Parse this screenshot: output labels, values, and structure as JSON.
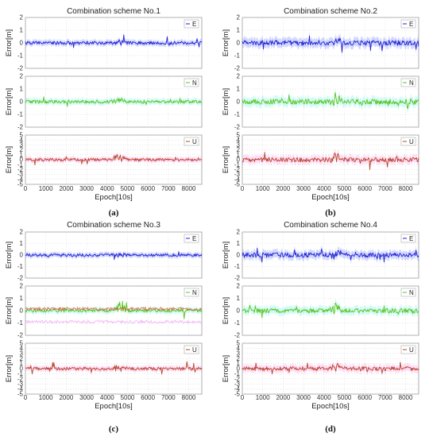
{
  "colors": {
    "E": "#2020d0",
    "N": "#58c41c",
    "U": "#b8442a",
    "E_bg": "#7b8cff",
    "N_bg": "#7ff2e4",
    "U_bg": "#ff9fe6",
    "N3_red": "#e0441e",
    "N3_pink": "#f09cf0"
  },
  "chart_data": [
    {
      "id": "a",
      "type": "line",
      "title": "Combination scheme No.1",
      "caption": "(a)",
      "xlabel": "Epoch[10s]",
      "xlim": [
        0,
        8640
      ],
      "xticks": [
        "0",
        "1000",
        "2000",
        "3000",
        "4000",
        "5000",
        "6000",
        "7000",
        "8000"
      ],
      "subplots": [
        {
          "series": "E",
          "ylabel": "Error[m]",
          "ylim": [
            -2,
            2
          ],
          "yticks": [
            "2",
            "1",
            "0",
            "-1",
            "-2"
          ],
          "mean": 0.0,
          "noise": 0.12,
          "spike": 0.55
        },
        {
          "series": "N",
          "ylabel": "Error[m]",
          "ylim": [
            -2,
            2
          ],
          "yticks": [
            "2",
            "1",
            "0",
            "-1",
            "-2"
          ],
          "mean": 0.0,
          "noise": 0.13,
          "spike": 0.5
        },
        {
          "series": "U",
          "ylabel": "Error[m]",
          "ylim": [
            -5,
            5
          ],
          "yticks": [
            "5",
            "4",
            "3",
            "2",
            "1",
            "0",
            "-1",
            "-2",
            "-3",
            "-4",
            "-5"
          ],
          "mean": 0.0,
          "noise": 0.3,
          "spike": 1.5
        }
      ]
    },
    {
      "id": "b",
      "type": "line",
      "title": "Combination scheme No.2",
      "caption": "(b)",
      "xlabel": "Epoch[10s]",
      "xlim": [
        0,
        8640
      ],
      "xticks": [
        "0",
        "1000",
        "2000",
        "3000",
        "4000",
        "5000",
        "6000",
        "7000",
        "8000"
      ],
      "subplots": [
        {
          "series": "E",
          "ylabel": "Error[m]",
          "ylim": [
            -2,
            2
          ],
          "yticks": [
            "2",
            "1",
            "0",
            "-1",
            "-2"
          ],
          "mean": 0.0,
          "noise": 0.2,
          "spike": 0.9
        },
        {
          "series": "N",
          "ylabel": "Error[m]",
          "ylim": [
            -2,
            2
          ],
          "yticks": [
            "2",
            "1",
            "0",
            "-1",
            "-2"
          ],
          "mean": 0.0,
          "noise": 0.2,
          "spike": 0.8
        },
        {
          "series": "U",
          "ylabel": "Error[m]",
          "ylim": [
            -5,
            5
          ],
          "yticks": [
            "5",
            "4",
            "3",
            "2",
            "1",
            "0",
            "-1",
            "-2",
            "-3",
            "-4",
            "-5"
          ],
          "mean": 0.0,
          "noise": 0.45,
          "spike": 2.0
        }
      ]
    },
    {
      "id": "c",
      "type": "line",
      "title": "Combination scheme No.3",
      "caption": "(c)",
      "xlabel": "Epoch[10s]",
      "xlim": [
        0,
        8640
      ],
      "xticks": [
        "0",
        "1000",
        "2000",
        "3000",
        "4000",
        "5000",
        "6000",
        "7000",
        "8000"
      ],
      "subplots": [
        {
          "series": "E",
          "ylabel": "Error[m]",
          "ylim": [
            -2,
            2
          ],
          "yticks": [
            "2",
            "1",
            "0",
            "-1",
            "-2"
          ],
          "mean": 0.0,
          "noise": 0.12,
          "spike": 0.55
        },
        {
          "series": "N",
          "ylabel": "Error[m]",
          "ylim": [
            -2,
            2
          ],
          "yticks": [
            "2",
            "1",
            "0",
            "-1",
            "-2"
          ],
          "mean": 0.0,
          "noise": 0.13,
          "spike": 0.7
        },
        {
          "series": "U",
          "ylabel": "Error[m]",
          "ylim": [
            -5,
            5
          ],
          "yticks": [
            "5",
            "4",
            "3",
            "2",
            "1",
            "0",
            "-1",
            "-2",
            "-3",
            "-4",
            "-5"
          ],
          "mean": 0.0,
          "noise": 0.3,
          "spike": 1.5
        }
      ]
    },
    {
      "id": "d",
      "type": "line",
      "title": "Combination scheme No.4",
      "caption": "(d)",
      "xlabel": "Epoch[10s]",
      "xlim": [
        0,
        8640
      ],
      "xticks": [
        "0",
        "1000",
        "2000",
        "3000",
        "4000",
        "5000",
        "6000",
        "7000",
        "8000"
      ],
      "subplots": [
        {
          "series": "E",
          "ylabel": "Error[m]",
          "ylim": [
            -2,
            2
          ],
          "yticks": [
            "2",
            "1",
            "0",
            "-1",
            "-2"
          ],
          "mean": 0.0,
          "noise": 0.2,
          "spike": 0.9
        },
        {
          "series": "N",
          "ylabel": "Error[m]",
          "ylim": [
            -2,
            2
          ],
          "yticks": [
            "2",
            "1",
            "0",
            "-1",
            "-2"
          ],
          "mean": 0.0,
          "noise": 0.18,
          "spike": 0.8
        },
        {
          "series": "U",
          "ylabel": "Error[m]",
          "ylim": [
            -5,
            5
          ],
          "yticks": [
            "5",
            "4",
            "3",
            "2",
            "1",
            "0",
            "-1",
            "-2",
            "-3",
            "-4",
            "-5"
          ],
          "mean": 0.0,
          "noise": 0.4,
          "spike": 1.8
        }
      ]
    }
  ]
}
